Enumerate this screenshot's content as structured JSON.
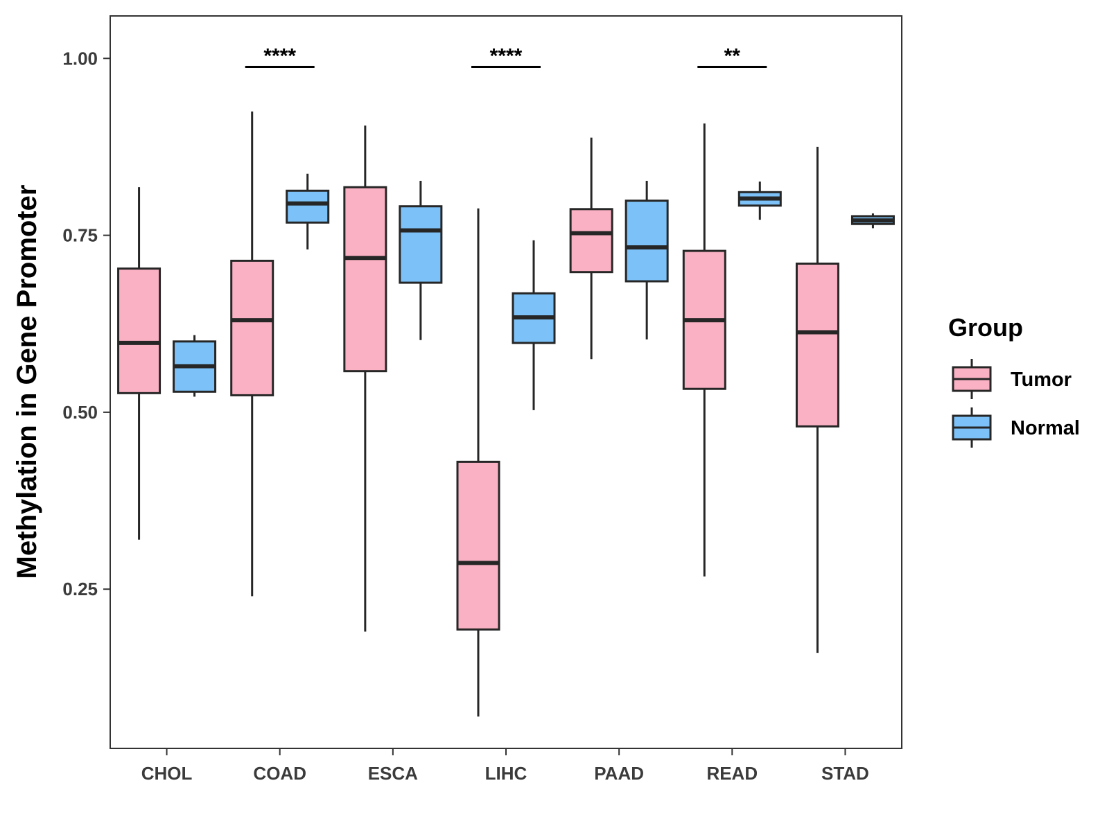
{
  "chart_data": {
    "type": "boxplot",
    "title": "",
    "xlabel": "",
    "ylabel": "Methylation in Gene Promoter",
    "ylim": [
      0.025,
      1.06
    ],
    "yticks": [
      0.25,
      0.5,
      0.75,
      1.0
    ],
    "ytick_labels": [
      "0.25",
      "0.50",
      "0.75",
      "1.00"
    ],
    "categories": [
      "CHOL",
      "COAD",
      "ESCA",
      "LIHC",
      "PAAD",
      "READ",
      "STAD"
    ],
    "grid": false,
    "legend": {
      "title": "Group",
      "position": "right",
      "entries": [
        {
          "name": "Tumor",
          "color": "#fbb1c4"
        },
        {
          "name": "Normal",
          "color": "#7cc2f8"
        }
      ]
    },
    "series": [
      {
        "name": "Tumor",
        "color": "#fbb1c4",
        "boxes": [
          {
            "category": "CHOL",
            "min": 0.32,
            "q1": 0.527,
            "median": 0.598,
            "q3": 0.703,
            "max": 0.818
          },
          {
            "category": "COAD",
            "min": 0.24,
            "q1": 0.524,
            "median": 0.63,
            "q3": 0.714,
            "max": 0.925
          },
          {
            "category": "ESCA",
            "min": 0.19,
            "q1": 0.558,
            "median": 0.718,
            "q3": 0.818,
            "max": 0.905
          },
          {
            "category": "LIHC",
            "min": 0.07,
            "q1": 0.193,
            "median": 0.287,
            "q3": 0.43,
            "max": 0.788
          },
          {
            "category": "PAAD",
            "min": 0.575,
            "q1": 0.698,
            "median": 0.753,
            "q3": 0.787,
            "max": 0.888
          },
          {
            "category": "READ",
            "min": 0.268,
            "q1": 0.533,
            "median": 0.63,
            "q3": 0.728,
            "max": 0.908
          },
          {
            "category": "STAD",
            "min": 0.16,
            "q1": 0.48,
            "median": 0.613,
            "q3": 0.71,
            "max": 0.875
          }
        ]
      },
      {
        "name": "Normal",
        "color": "#7cc2f8",
        "boxes": [
          {
            "category": "CHOL",
            "min": 0.522,
            "q1": 0.529,
            "median": 0.565,
            "q3": 0.6,
            "max": 0.609
          },
          {
            "category": "COAD",
            "min": 0.73,
            "q1": 0.768,
            "median": 0.795,
            "q3": 0.813,
            "max": 0.837
          },
          {
            "category": "ESCA",
            "min": 0.602,
            "q1": 0.683,
            "median": 0.757,
            "q3": 0.791,
            "max": 0.827
          },
          {
            "category": "LIHC",
            "min": 0.503,
            "q1": 0.598,
            "median": 0.634,
            "q3": 0.668,
            "max": 0.743
          },
          {
            "category": "PAAD",
            "min": 0.603,
            "q1": 0.685,
            "median": 0.733,
            "q3": 0.799,
            "max": 0.827
          },
          {
            "category": "READ",
            "min": 0.772,
            "q1": 0.792,
            "median": 0.802,
            "q3": 0.811,
            "max": 0.826
          },
          {
            "category": "STAD",
            "min": 0.76,
            "q1": 0.766,
            "median": 0.771,
            "q3": 0.777,
            "max": 0.781
          }
        ]
      }
    ],
    "significance": [
      {
        "category": "COAD",
        "label": "****",
        "y": 0.988
      },
      {
        "category": "LIHC",
        "label": "****",
        "y": 0.988
      },
      {
        "category": "READ",
        "label": "**",
        "y": 0.988
      }
    ]
  }
}
